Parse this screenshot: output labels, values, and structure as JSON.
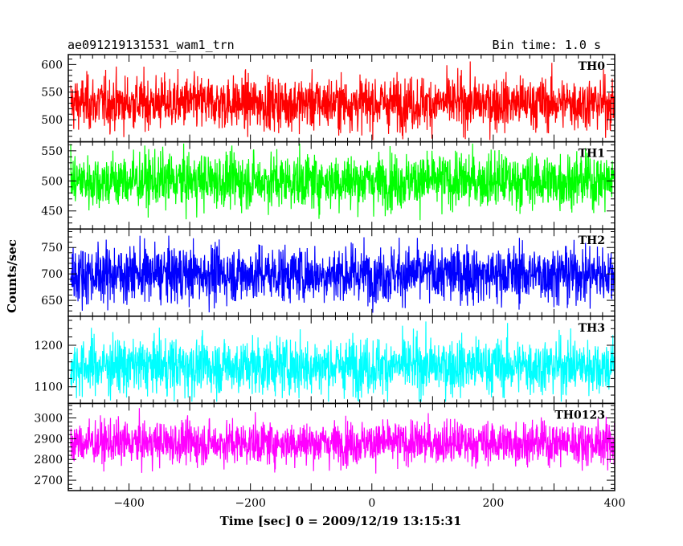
{
  "chart_data": {
    "type": "line",
    "title": "ae091219131531_wam1_trn",
    "bin_time_label": "Bin time: 1.0 s",
    "xlabel": "Time [sec] 0 = 2009/12/19 13:15:31",
    "ylabel": "Counts/sec",
    "xlim": [
      -500,
      400
    ],
    "xticks": [
      -400,
      -200,
      0,
      200,
      400
    ],
    "grid": false,
    "colors": {
      "TH0": "#ff0000",
      "TH1": "#00ff00",
      "TH2": "#0000ff",
      "TH3": "#00ffff",
      "TH0123": "#ff00ff"
    },
    "panels": [
      {
        "name": "TH0",
        "mean": 530,
        "spread": 24,
        "ylim": [
          460,
          618
        ],
        "yticks": [
          500,
          550,
          600
        ],
        "color": "#ff0000"
      },
      {
        "name": "TH1",
        "mean": 500,
        "spread": 23,
        "ylim": [
          420,
          565
        ],
        "yticks": [
          450,
          500,
          550
        ],
        "color": "#00ff00"
      },
      {
        "name": "TH2",
        "mean": 700,
        "spread": 27,
        "ylim": [
          620,
          785
        ],
        "yticks": [
          650,
          700,
          750
        ],
        "color": "#0000ff"
      },
      {
        "name": "TH3",
        "mean": 1150,
        "spread": 34,
        "ylim": [
          1060,
          1270
        ],
        "yticks": [
          1100,
          1200
        ],
        "color": "#00ffff"
      },
      {
        "name": "TH0123",
        "mean": 2880,
        "spread": 52,
        "ylim": [
          2650,
          3070
        ],
        "yticks": [
          2700,
          2800,
          2900,
          3000
        ],
        "color": "#ff00ff"
      }
    ]
  }
}
